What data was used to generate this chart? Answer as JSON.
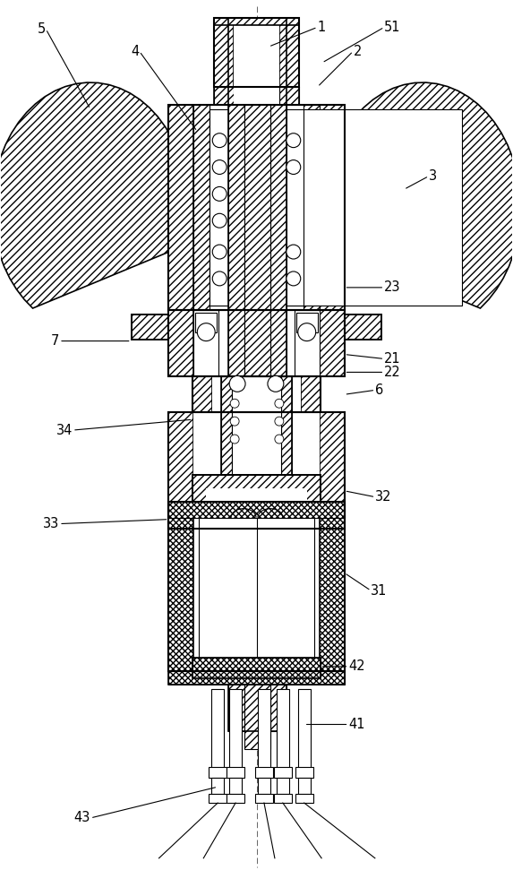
{
  "bg_color": "#ffffff",
  "line_color": "#000000",
  "fig_width": 5.73,
  "fig_height": 10.0,
  "dpi": 100
}
